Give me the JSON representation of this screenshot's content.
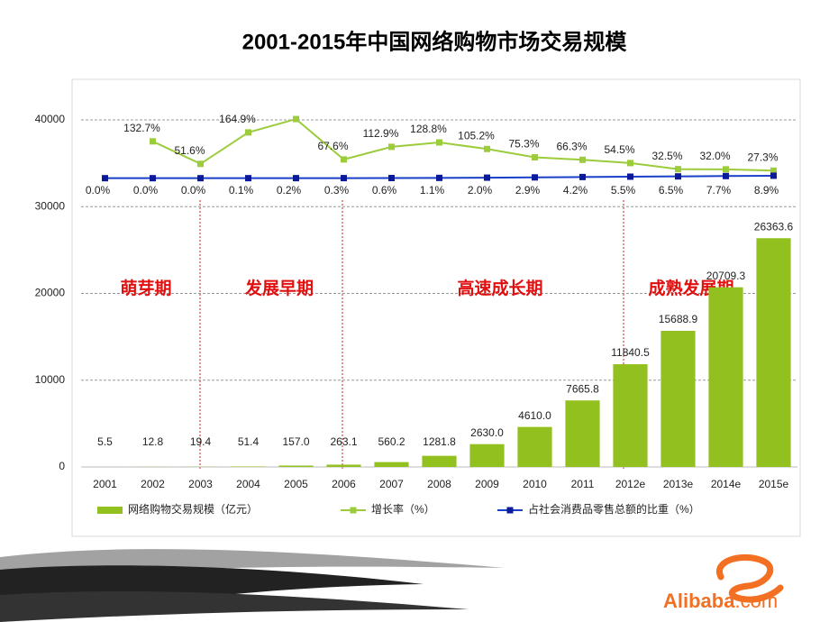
{
  "chart_data": {
    "type": "bar",
    "title": "2001-2015年中国网络购物市场交易规模",
    "categories": [
      "2001",
      "2002",
      "2003",
      "2004",
      "2005",
      "2006",
      "2007",
      "2008",
      "2009",
      "2010",
      "2011",
      "2012e",
      "2013e",
      "2014e",
      "2015e"
    ],
    "ylim": [
      0,
      40000
    ],
    "yticks": [
      0,
      10000,
      20000,
      30000,
      40000
    ],
    "y2lim": [
      -1040,
      210
    ],
    "grid": true,
    "series": [
      {
        "name": "网络购物交易规模（亿元）",
        "type": "bar",
        "color": "#92c01f",
        "values": [
          5.5,
          12.8,
          19.4,
          51.4,
          157,
          263.1,
          560.2,
          1281.8,
          2630,
          4610,
          7665.8,
          11840.5,
          15688.9,
          20709.3,
          26363.6
        ],
        "value_labels": [
          "5.5",
          "12.8",
          "19.4",
          "51.4",
          "157.0",
          "263.1",
          "560.2",
          "1281.8",
          "2630.0",
          "4610.0",
          "7665.8",
          "11840.5",
          "15688.9",
          "20709.3",
          "26363.6"
        ]
      },
      {
        "name": "增长率（%）",
        "type": "line",
        "axis": "y2",
        "color": "#9ccc3c",
        "values": [
          null,
          132.7,
          51.6,
          164.9,
          213,
          67.6,
          112.9,
          128.8,
          105.2,
          75.3,
          66.3,
          54.5,
          32.5,
          32.0,
          27.3
        ],
        "value_labels": [
          null,
          "132.7%",
          "51.6%",
          "164.9%",
          null,
          "67.6%",
          "112.9%",
          "128.8%",
          "105.2%",
          "75.3%",
          "66.3%",
          "54.5%",
          "32.5%",
          "32.0%",
          "27.3%"
        ]
      },
      {
        "name": "占社会消费品零售总额的比重（%）",
        "type": "line",
        "axis": "y2",
        "color": "#1a3fc8",
        "values": [
          0,
          0,
          0,
          0.1,
          0.2,
          0.3,
          0.6,
          1.1,
          2.0,
          2.9,
          4.2,
          5.5,
          6.5,
          7.7,
          8.9
        ],
        "value_labels": [
          "0.0%",
          "0.0%",
          "0.0%",
          "0.1%",
          "0.2%",
          "0.3%",
          "0.6%",
          "1.1%",
          "2.0%",
          "2.9%",
          "4.2%",
          "5.5%",
          "6.5%",
          "7.7%",
          "8.9%"
        ]
      }
    ],
    "annotations": [
      "萌芽期",
      "发展早期",
      "高速成长期",
      "成熟发展期"
    ]
  },
  "logo": {
    "name": "Alibaba",
    "suffix": ".com"
  }
}
